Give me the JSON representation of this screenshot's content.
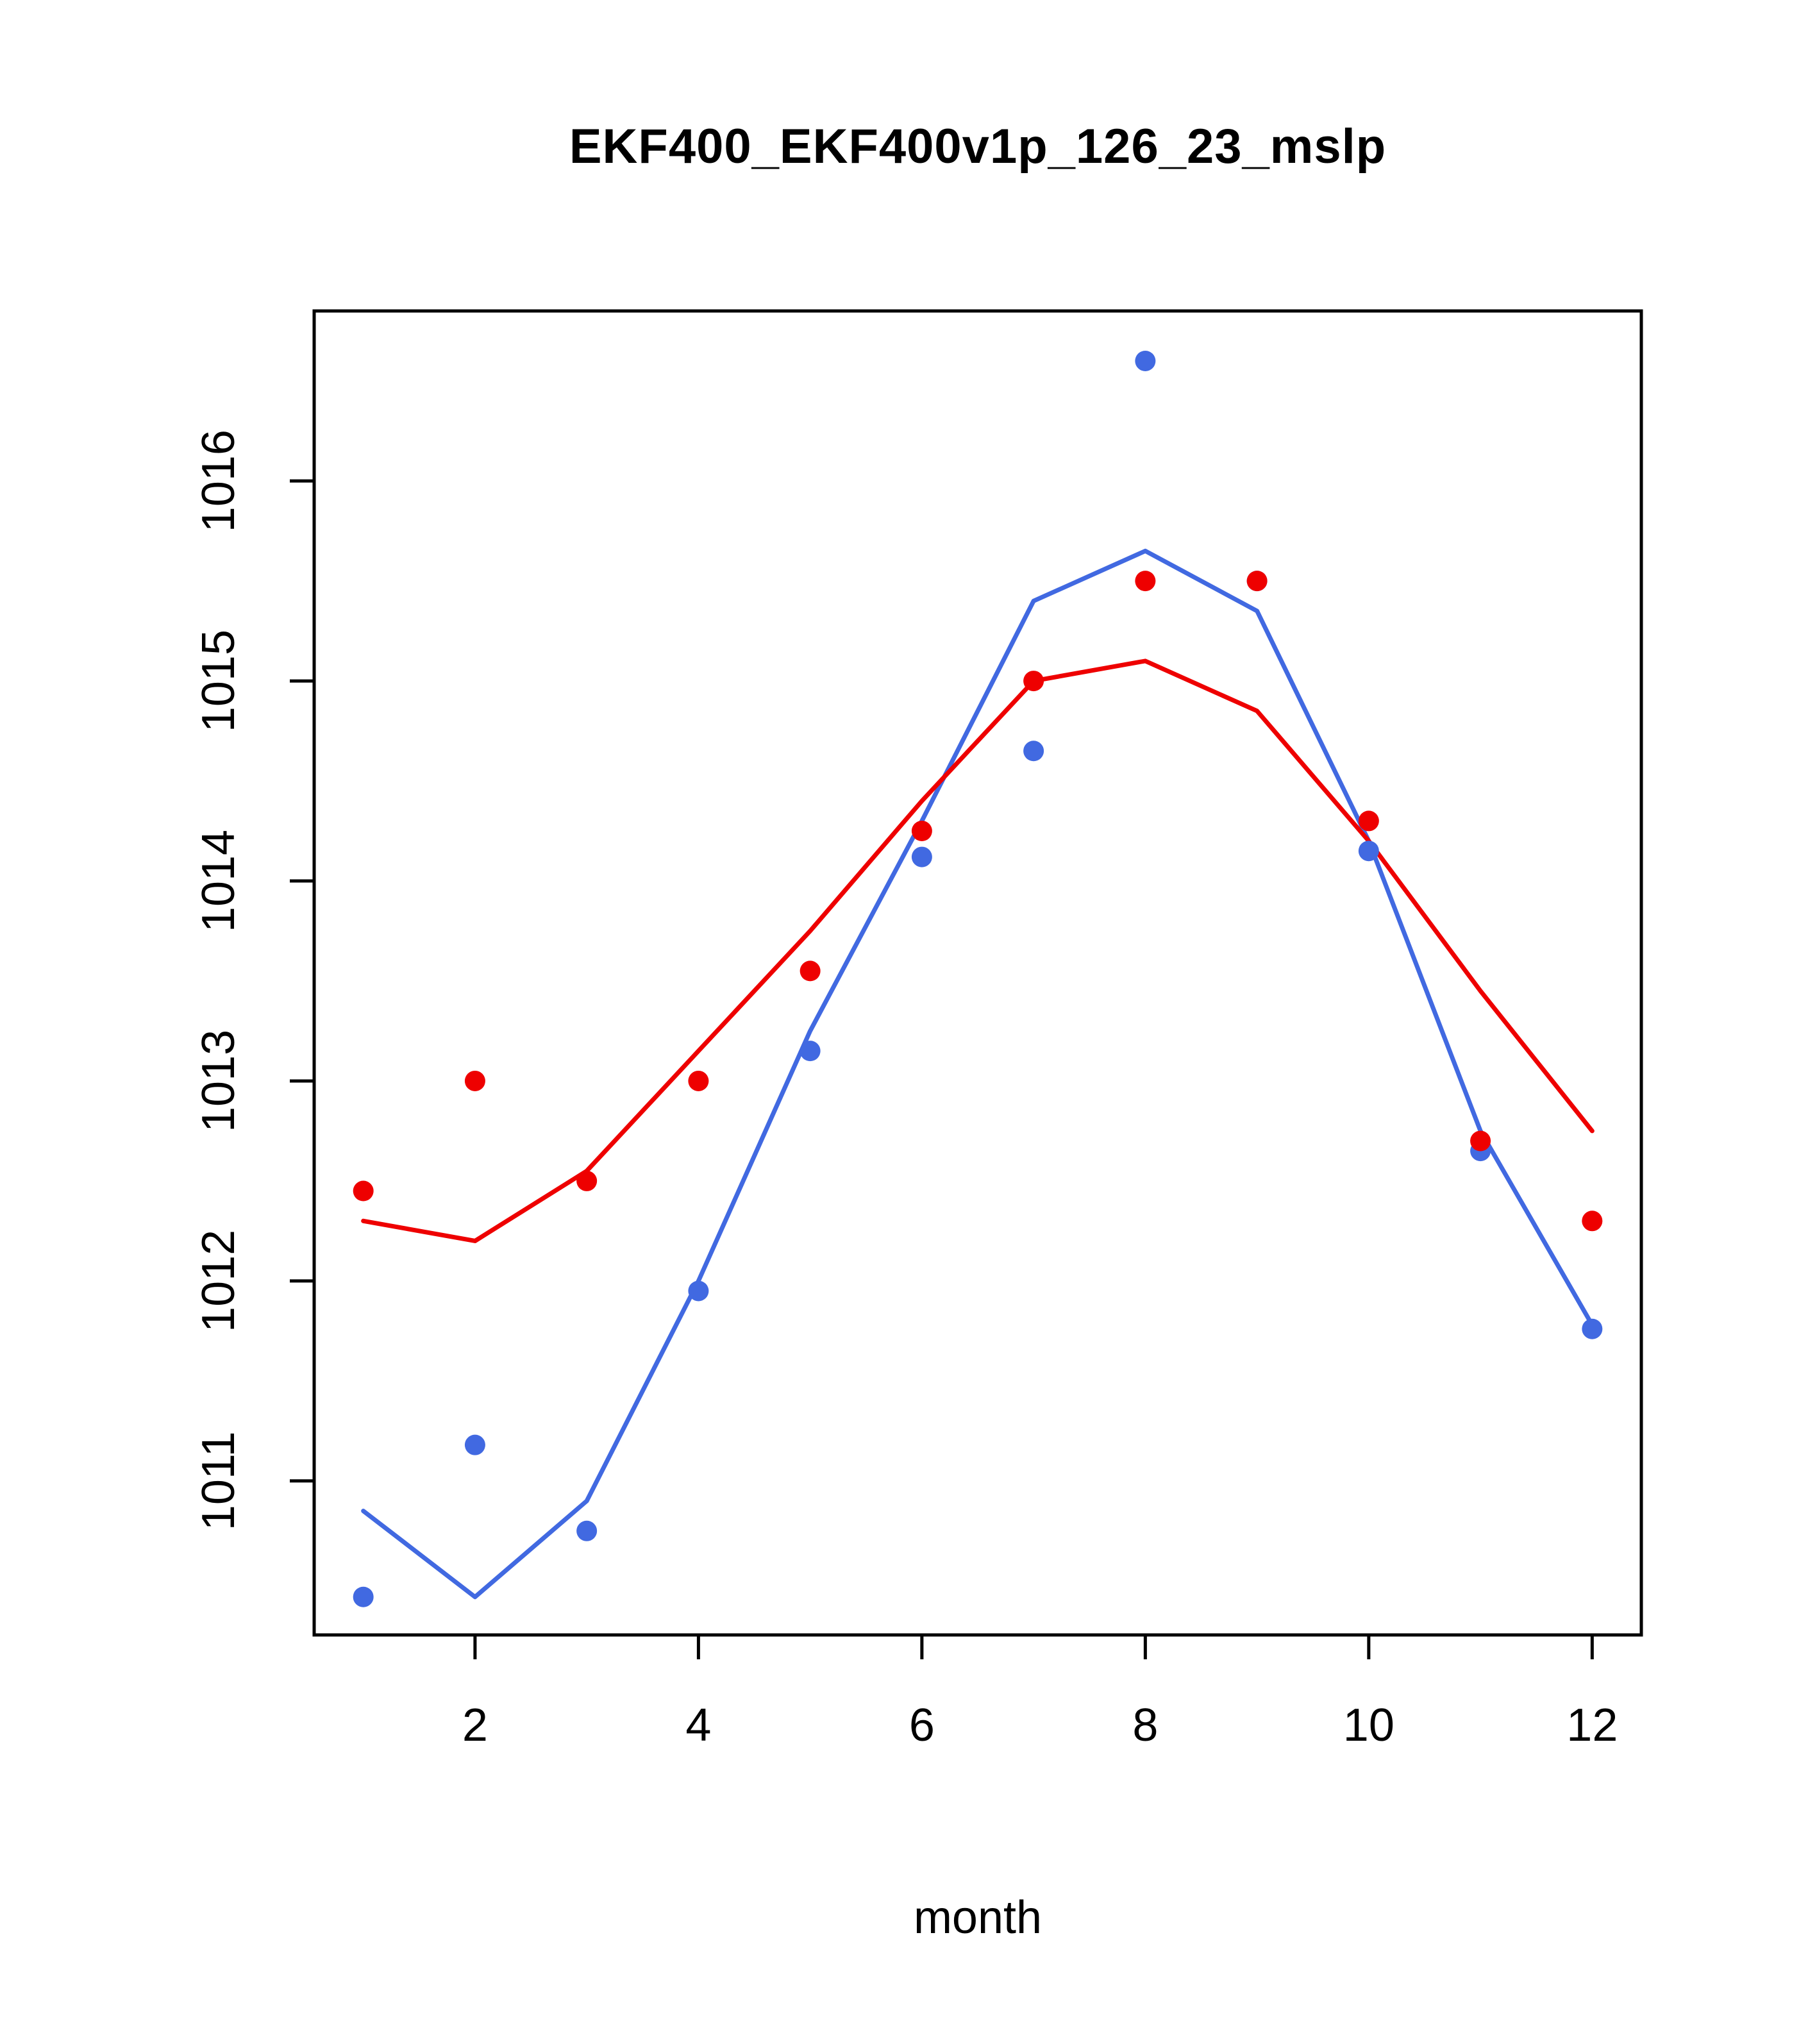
{
  "title": "EKF400_EKF400v1p_126_23_mslp",
  "xlabel": "month",
  "colors": {
    "red": "#ee0000",
    "blue": "#4169e1",
    "axis": "#000000",
    "background": "#ffffff"
  },
  "chart_data": {
    "type": "line",
    "title": "EKF400_EKF400v1p_126_23_mslp",
    "xlabel": "month",
    "ylabel": "",
    "x": [
      1,
      2,
      3,
      4,
      5,
      6,
      7,
      8,
      9,
      10,
      11,
      12
    ],
    "xlim": [
      0.56,
      12.44
    ],
    "ylim": [
      1010.23,
      1016.85
    ],
    "xticks": [
      2,
      4,
      6,
      8,
      10,
      12
    ],
    "yticks": [
      1011,
      1012,
      1013,
      1014,
      1015,
      1016
    ],
    "grid": false,
    "legend": null,
    "series": [
      {
        "name": "blue-line",
        "kind": "line",
        "color": "#4169e1",
        "values": [
          1010.85,
          1010.42,
          1010.9,
          1012.0,
          1013.25,
          1014.3,
          1015.4,
          1015.65,
          1015.35,
          1014.2,
          1012.75,
          1011.78
        ]
      },
      {
        "name": "red-line",
        "kind": "line",
        "color": "#ee0000",
        "values": [
          1012.3,
          1012.2,
          1012.55,
          1013.15,
          1013.75,
          1014.4,
          1015.0,
          1015.1,
          1014.85,
          1014.2,
          1013.45,
          1012.75
        ]
      },
      {
        "name": "blue-points",
        "kind": "points",
        "color": "#4169e1",
        "values": [
          1010.42,
          1011.18,
          1010.75,
          1011.95,
          1013.15,
          1014.12,
          1014.65,
          1016.6,
          1015.5,
          1014.15,
          1012.65,
          1011.76
        ]
      },
      {
        "name": "red-points",
        "kind": "points",
        "color": "#ee0000",
        "values": [
          1012.45,
          1013.0,
          1012.5,
          1013.0,
          1013.55,
          1014.25,
          1015.0,
          1015.5,
          1015.5,
          1014.3,
          1012.7,
          1012.3
        ]
      }
    ]
  }
}
